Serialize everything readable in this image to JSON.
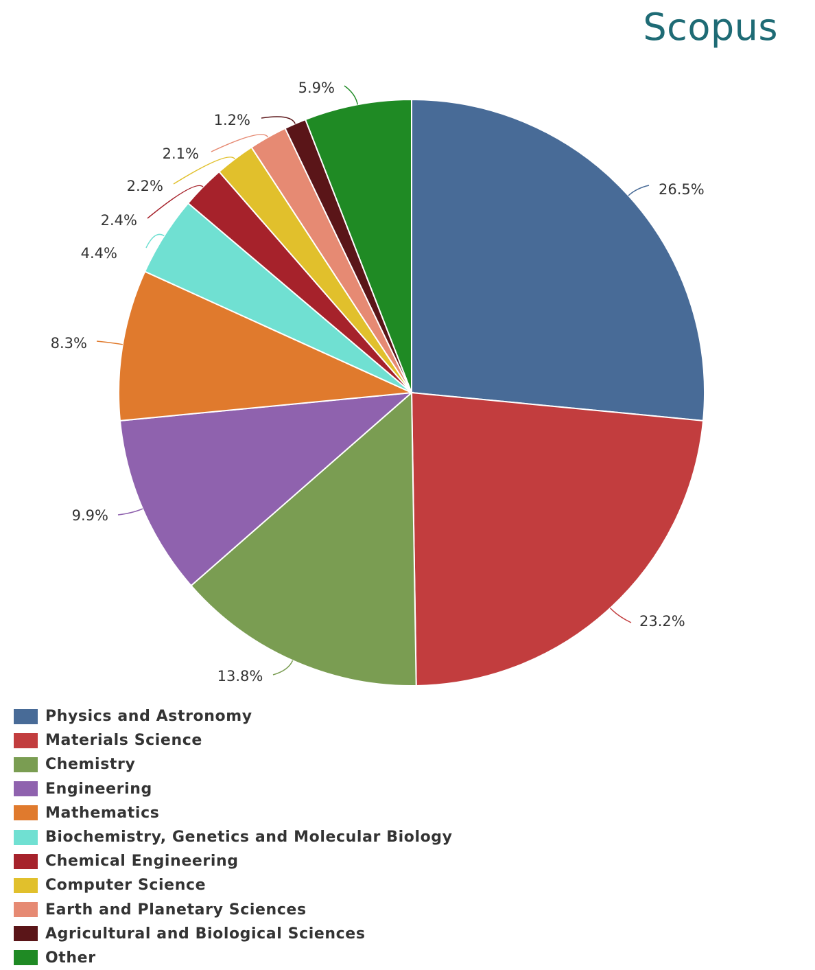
{
  "brand": "Scopus",
  "chart_data": {
    "type": "pie",
    "title": "",
    "start_angle_deg": 0,
    "direction": "clockwise",
    "legend_position": "bottom-left",
    "slices": [
      {
        "name": "Physics and Astronomy",
        "value": 26.5,
        "label": "26.5%",
        "color": "#486b97"
      },
      {
        "name": "Materials Science",
        "value": 23.2,
        "label": "23.2%",
        "color": "#c23d3e"
      },
      {
        "name": "Chemistry",
        "value": 13.8,
        "label": "13.8%",
        "color": "#7a9d52"
      },
      {
        "name": "Engineering",
        "value": 9.9,
        "label": "9.9%",
        "color": "#8f62ae"
      },
      {
        "name": "Mathematics",
        "value": 8.3,
        "label": "8.3%",
        "color": "#e07a2d"
      },
      {
        "name": "Biochemistry, Genetics and Molecular Biology",
        "value": 4.4,
        "label": "4.4%",
        "color": "#70e0d2"
      },
      {
        "name": "Chemical Engineering",
        "value": 2.4,
        "label": "2.4%",
        "color": "#a6222b"
      },
      {
        "name": "Computer Science",
        "value": 2.2,
        "label": "2.2%",
        "color": "#e1c02c"
      },
      {
        "name": "Earth and Planetary Sciences",
        "value": 2.1,
        "label": "2.1%",
        "color": "#e68a73"
      },
      {
        "name": "Agricultural and Biological Sciences",
        "value": 1.2,
        "label": "1.2%",
        "color": "#5a1518"
      },
      {
        "name": "Other",
        "value": 5.9,
        "label": "5.9%",
        "color": "#1f8a24"
      }
    ]
  }
}
